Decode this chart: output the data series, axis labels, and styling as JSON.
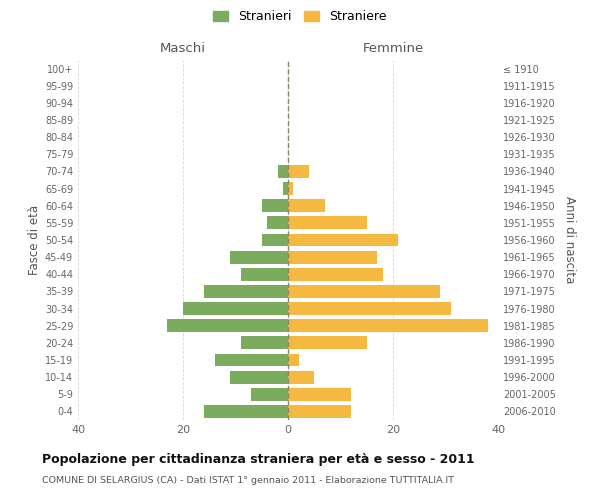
{
  "age_groups": [
    "0-4",
    "5-9",
    "10-14",
    "15-19",
    "20-24",
    "25-29",
    "30-34",
    "35-39",
    "40-44",
    "45-49",
    "50-54",
    "55-59",
    "60-64",
    "65-69",
    "70-74",
    "75-79",
    "80-84",
    "85-89",
    "90-94",
    "95-99",
    "100+"
  ],
  "birth_years": [
    "2006-2010",
    "2001-2005",
    "1996-2000",
    "1991-1995",
    "1986-1990",
    "1981-1985",
    "1976-1980",
    "1971-1975",
    "1966-1970",
    "1961-1965",
    "1956-1960",
    "1951-1955",
    "1946-1950",
    "1941-1945",
    "1936-1940",
    "1931-1935",
    "1926-1930",
    "1921-1925",
    "1916-1920",
    "1911-1915",
    "≤ 1910"
  ],
  "maschi": [
    16,
    7,
    11,
    14,
    9,
    23,
    20,
    16,
    9,
    11,
    5,
    4,
    5,
    1,
    2,
    0,
    0,
    0,
    0,
    0,
    0
  ],
  "femmine": [
    12,
    12,
    5,
    2,
    15,
    38,
    31,
    29,
    18,
    17,
    21,
    15,
    7,
    1,
    4,
    0,
    0,
    0,
    0,
    0,
    0
  ],
  "color_maschi": "#7aab5e",
  "color_femmine": "#f5b942",
  "title": "Popolazione per cittadinanza straniera per età e sesso - 2011",
  "subtitle": "COMUNE DI SELARGIUS (CA) - Dati ISTAT 1° gennaio 2011 - Elaborazione TUTTITALIA.IT",
  "xlabel_left": "Maschi",
  "xlabel_right": "Femmine",
  "ylabel_left": "Fasce di età",
  "ylabel_right": "Anni di nascita",
  "legend_maschi": "Stranieri",
  "legend_femmine": "Straniere",
  "xlim": 40,
  "background_color": "#ffffff",
  "grid_color": "#d8d8d8"
}
